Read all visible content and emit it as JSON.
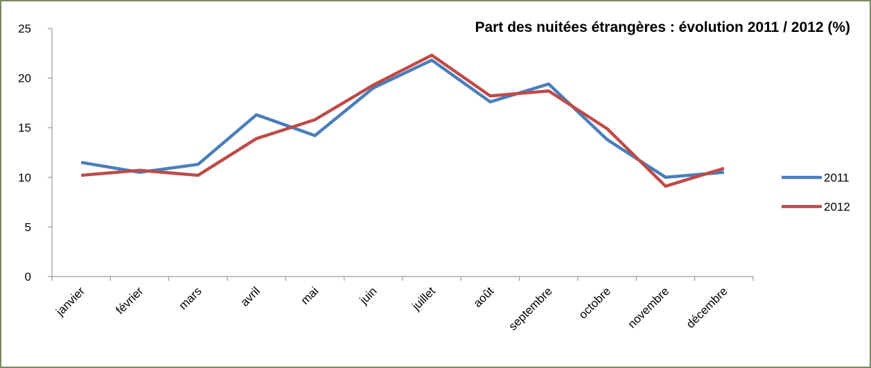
{
  "chart_data": {
    "type": "line",
    "title": "Part des nuitées étrangères : évolution 2011 / 2012 (%)",
    "categories": [
      "janvier",
      "février",
      "mars",
      "avril",
      "mai",
      "juin",
      "juillet",
      "août",
      "septembre",
      "octobre",
      "novembre",
      "décembre"
    ],
    "series": [
      {
        "name": "2011",
        "color": "#4a7ebb",
        "values": [
          11.5,
          10.5,
          11.3,
          16.3,
          14.2,
          19.0,
          21.8,
          17.6,
          19.4,
          13.8,
          10.0,
          10.5
        ]
      },
      {
        "name": "2012",
        "color": "#be4b48",
        "values": [
          10.2,
          10.7,
          10.2,
          13.9,
          15.8,
          19.3,
          22.3,
          18.2,
          18.7,
          14.9,
          9.1,
          10.9
        ]
      }
    ],
    "ylim": [
      0,
      25
    ],
    "yticks": [
      0,
      5,
      10,
      15,
      20,
      25
    ],
    "grid": false,
    "legend": "right"
  }
}
